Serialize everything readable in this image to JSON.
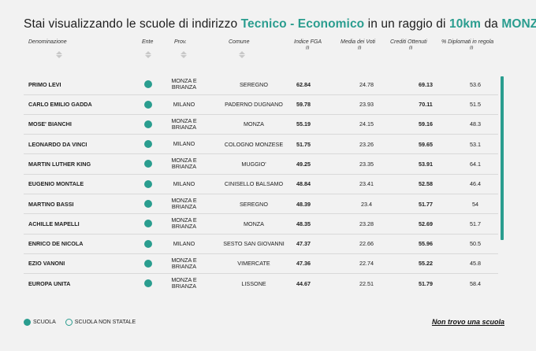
{
  "title": {
    "prefix": "Stai visualizzando le scuole di indirizzo",
    "indirizzo": "Tecnico - Economico",
    "middle": "in un raggio di",
    "raggio": "10km",
    "da": "da",
    "citta": "MONZA"
  },
  "columns": {
    "denominazione": "Denominazione",
    "ente": "Ente",
    "prov": "Prov.",
    "comune": "Comune",
    "fga": "Indice FGA",
    "voti": "Media dei Voti",
    "crediti": "Crediti Ottenuti",
    "diplomati": "% Diplomati in regola",
    "note_marker": "(i)"
  },
  "rows": [
    {
      "name": "PRIMO LEVI",
      "prov": "MONZA E BRIANZA",
      "comune": "SEREGNO",
      "fga": "62.84",
      "voti": "24.78",
      "crediti": "69.13",
      "diplomati": "53.6"
    },
    {
      "name": "CARLO EMILIO GADDA",
      "prov": "MILANO",
      "comune": "PADERNO DUGNANO",
      "fga": "59.78",
      "voti": "23.93",
      "crediti": "70.11",
      "diplomati": "51.5"
    },
    {
      "name": "MOSE' BIANCHI",
      "prov": "MONZA E BRIANZA",
      "comune": "MONZA",
      "fga": "55.19",
      "voti": "24.15",
      "crediti": "59.16",
      "diplomati": "48.3"
    },
    {
      "name": "LEONARDO DA VINCI",
      "prov": "MILANO",
      "comune": "COLOGNO MONZESE",
      "fga": "51.75",
      "voti": "23.26",
      "crediti": "59.65",
      "diplomati": "53.1"
    },
    {
      "name": "MARTIN LUTHER KING",
      "prov": "MONZA E BRIANZA",
      "comune": "MUGGIO'",
      "fga": "49.25",
      "voti": "23.35",
      "crediti": "53.91",
      "diplomati": "64.1"
    },
    {
      "name": "EUGENIO MONTALE",
      "prov": "MILANO",
      "comune": "CINISELLO BALSAMO",
      "fga": "48.84",
      "voti": "23.41",
      "crediti": "52.58",
      "diplomati": "46.4"
    },
    {
      "name": "MARTINO BASSI",
      "prov": "MONZA E BRIANZA",
      "comune": "SEREGNO",
      "fga": "48.39",
      "voti": "23.4",
      "crediti": "51.77",
      "diplomati": "54"
    },
    {
      "name": "ACHILLE MAPELLI",
      "prov": "MONZA E BRIANZA",
      "comune": "MONZA",
      "fga": "48.35",
      "voti": "23.28",
      "crediti": "52.69",
      "diplomati": "51.7"
    },
    {
      "name": "ENRICO DE NICOLA",
      "prov": "MILANO",
      "comune": "SESTO SAN GIOVANNI",
      "fga": "47.37",
      "voti": "22.66",
      "crediti": "55.96",
      "diplomati": "50.5"
    },
    {
      "name": "EZIO VANONI",
      "prov": "MONZA E BRIANZA",
      "comune": "VIMERCATE",
      "fga": "47.36",
      "voti": "22.74",
      "crediti": "55.22",
      "diplomati": "45.8"
    },
    {
      "name": "EUROPA UNITA",
      "prov": "MONZA E BRIANZA",
      "comune": "LISSONE",
      "fga": "44.67",
      "voti": "22.51",
      "crediti": "51.79",
      "diplomati": "58.4"
    }
  ],
  "legend": {
    "scuola": "SCUOLA",
    "non_statale": "SCUOLA NON STATALE"
  },
  "link": "Non trovo una scuola",
  "colors": {
    "accent": "#2a9d8f"
  },
  "icons": [
    "sort-icon",
    "ente-dot-icon"
  ]
}
